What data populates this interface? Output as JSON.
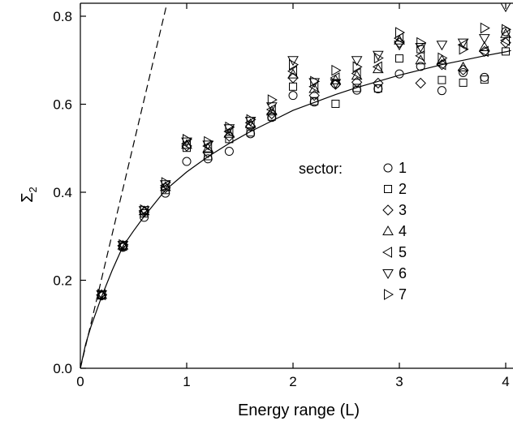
{
  "chart_data": {
    "type": "scatter",
    "xlabel": "Energy range (L)",
    "ylabel_main": "Σ",
    "ylabel_sub": "2",
    "xlim": [
      0,
      4.05
    ],
    "ylim": [
      0,
      0.83
    ],
    "xticks": [
      0,
      1,
      2,
      3,
      4
    ],
    "yticks": [
      0.0,
      0.2,
      0.4,
      0.6,
      0.8
    ],
    "xtick_labels": [
      "0",
      "1",
      "2",
      "3",
      "4"
    ],
    "ytick_labels": [
      "0.0",
      "0.2",
      "0.4",
      "0.6",
      "0.8"
    ],
    "grid": false,
    "legend_title": "sector:",
    "legend_position": "right",
    "lines": [
      {
        "style": "solid",
        "kind": "fit-curve",
        "x": [
          0.0,
          0.05,
          0.1,
          0.2,
          0.3,
          0.4,
          0.5,
          0.6,
          0.8,
          1.0,
          1.2,
          1.4,
          1.6,
          1.8,
          2.0,
          2.2,
          2.4,
          2.6,
          2.8,
          3.0,
          3.2,
          3.4,
          3.6,
          3.8,
          4.0,
          4.05
        ],
        "y": [
          0.0,
          0.055,
          0.095,
          0.163,
          0.223,
          0.277,
          0.312,
          0.345,
          0.405,
          0.446,
          0.481,
          0.511,
          0.538,
          0.562,
          0.586,
          0.604,
          0.622,
          0.638,
          0.652,
          0.666,
          0.678,
          0.69,
          0.7,
          0.71,
          0.719,
          0.722
        ]
      },
      {
        "style": "dashed",
        "kind": "reference-line",
        "x": [
          0.0,
          0.815
        ],
        "y": [
          0.0,
          0.83
        ]
      }
    ],
    "series": [
      {
        "name": "1",
        "marker": "circle",
        "points": [
          [
            0.2,
            0.165
          ],
          [
            0.4,
            0.275
          ],
          [
            0.6,
            0.343
          ],
          [
            0.8,
            0.398
          ],
          [
            1.0,
            0.47
          ],
          [
            1.2,
            0.476
          ],
          [
            1.4,
            0.493
          ],
          [
            1.6,
            0.533
          ],
          [
            1.8,
            0.57
          ],
          [
            2.0,
            0.62
          ],
          [
            2.2,
            0.605
          ],
          [
            2.4,
            0.646
          ],
          [
            2.6,
            0.632
          ],
          [
            2.8,
            0.635
          ],
          [
            3.0,
            0.669
          ],
          [
            3.2,
            0.686
          ],
          [
            3.4,
            0.631
          ],
          [
            3.6,
            0.672
          ],
          [
            3.8,
            0.661
          ],
          [
            4.0,
            0.765
          ]
        ]
      },
      {
        "name": "2",
        "marker": "square",
        "points": [
          [
            0.2,
            0.166
          ],
          [
            0.4,
            0.277
          ],
          [
            0.6,
            0.352
          ],
          [
            0.8,
            0.405
          ],
          [
            1.0,
            0.501
          ],
          [
            1.2,
            0.482
          ],
          [
            1.4,
            0.521
          ],
          [
            1.6,
            0.536
          ],
          [
            1.8,
            0.572
          ],
          [
            2.0,
            0.64
          ],
          [
            2.2,
            0.607
          ],
          [
            2.4,
            0.601
          ],
          [
            2.6,
            0.637
          ],
          [
            2.8,
            0.636
          ],
          [
            3.0,
            0.704
          ],
          [
            3.2,
            0.725
          ],
          [
            3.4,
            0.655
          ],
          [
            3.6,
            0.649
          ],
          [
            3.8,
            0.656
          ],
          [
            4.0,
            0.72
          ]
        ]
      },
      {
        "name": "3",
        "marker": "diamond",
        "points": [
          [
            0.2,
            0.166
          ],
          [
            0.4,
            0.278
          ],
          [
            0.6,
            0.355
          ],
          [
            0.8,
            0.41
          ],
          [
            1.0,
            0.505
          ],
          [
            1.2,
            0.49
          ],
          [
            1.4,
            0.527
          ],
          [
            1.6,
            0.55
          ],
          [
            1.8,
            0.578
          ],
          [
            2.0,
            0.66
          ],
          [
            2.2,
            0.62
          ],
          [
            2.4,
            0.645
          ],
          [
            2.6,
            0.65
          ],
          [
            2.8,
            0.648
          ],
          [
            3.0,
            0.74
          ],
          [
            3.2,
            0.648
          ],
          [
            3.4,
            0.69
          ],
          [
            3.6,
            0.678
          ],
          [
            3.8,
            0.72
          ],
          [
            4.0,
            0.74
          ]
        ]
      },
      {
        "name": "4",
        "marker": "triangle-up",
        "points": [
          [
            0.2,
            0.167
          ],
          [
            0.4,
            0.279
          ],
          [
            0.6,
            0.357
          ],
          [
            0.8,
            0.412
          ],
          [
            1.0,
            0.508
          ],
          [
            1.2,
            0.5
          ],
          [
            1.4,
            0.533
          ],
          [
            1.6,
            0.555
          ],
          [
            1.8,
            0.584
          ],
          [
            2.0,
            0.668
          ],
          [
            2.2,
            0.635
          ],
          [
            2.4,
            0.655
          ],
          [
            2.6,
            0.665
          ],
          [
            2.8,
            0.68
          ],
          [
            3.0,
            0.745
          ],
          [
            3.2,
            0.7
          ],
          [
            3.4,
            0.7
          ],
          [
            3.6,
            0.684
          ],
          [
            3.8,
            0.73
          ],
          [
            4.0,
            0.76
          ]
        ]
      },
      {
        "name": "5",
        "marker": "triangle-left",
        "points": [
          [
            0.2,
            0.167
          ],
          [
            0.4,
            0.279
          ],
          [
            0.6,
            0.358
          ],
          [
            0.8,
            0.415
          ],
          [
            1.0,
            0.51
          ],
          [
            1.2,
            0.505
          ],
          [
            1.4,
            0.538
          ],
          [
            1.6,
            0.558
          ],
          [
            1.8,
            0.588
          ],
          [
            2.0,
            0.675
          ],
          [
            2.2,
            0.64
          ],
          [
            2.4,
            0.66
          ],
          [
            2.6,
            0.67
          ],
          [
            2.8,
            0.685
          ],
          [
            3.0,
            0.75
          ],
          [
            3.2,
            0.71
          ],
          [
            3.4,
            0.69
          ],
          [
            3.6,
            0.735
          ],
          [
            3.8,
            0.72
          ],
          [
            4.0,
            0.745
          ]
        ]
      },
      {
        "name": "6",
        "marker": "triangle-down",
        "points": [
          [
            0.2,
            0.168
          ],
          [
            0.4,
            0.28
          ],
          [
            0.6,
            0.359
          ],
          [
            0.8,
            0.418
          ],
          [
            1.0,
            0.515
          ],
          [
            1.2,
            0.508
          ],
          [
            1.4,
            0.545
          ],
          [
            1.6,
            0.562
          ],
          [
            1.8,
            0.595
          ],
          [
            2.0,
            0.7
          ],
          [
            2.2,
            0.65
          ],
          [
            2.4,
            0.648
          ],
          [
            2.6,
            0.7
          ],
          [
            2.8,
            0.712
          ],
          [
            3.0,
            0.735
          ],
          [
            3.2,
            0.73
          ],
          [
            3.4,
            0.735
          ],
          [
            3.6,
            0.74
          ],
          [
            3.8,
            0.75
          ],
          [
            4.0,
            0.822
          ]
        ]
      },
      {
        "name": "7",
        "marker": "triangle-right",
        "points": [
          [
            0.2,
            0.168
          ],
          [
            0.4,
            0.281
          ],
          [
            0.6,
            0.36
          ],
          [
            0.8,
            0.422
          ],
          [
            1.0,
            0.52
          ],
          [
            1.2,
            0.515
          ],
          [
            1.4,
            0.548
          ],
          [
            1.6,
            0.565
          ],
          [
            1.8,
            0.61
          ],
          [
            2.0,
            0.69
          ],
          [
            2.2,
            0.652
          ],
          [
            2.4,
            0.677
          ],
          [
            2.6,
            0.685
          ],
          [
            2.8,
            0.705
          ],
          [
            3.0,
            0.763
          ],
          [
            3.2,
            0.74
          ],
          [
            3.4,
            0.705
          ],
          [
            3.6,
            0.725
          ],
          [
            3.8,
            0.773
          ],
          [
            4.0,
            0.77
          ]
        ]
      }
    ]
  }
}
